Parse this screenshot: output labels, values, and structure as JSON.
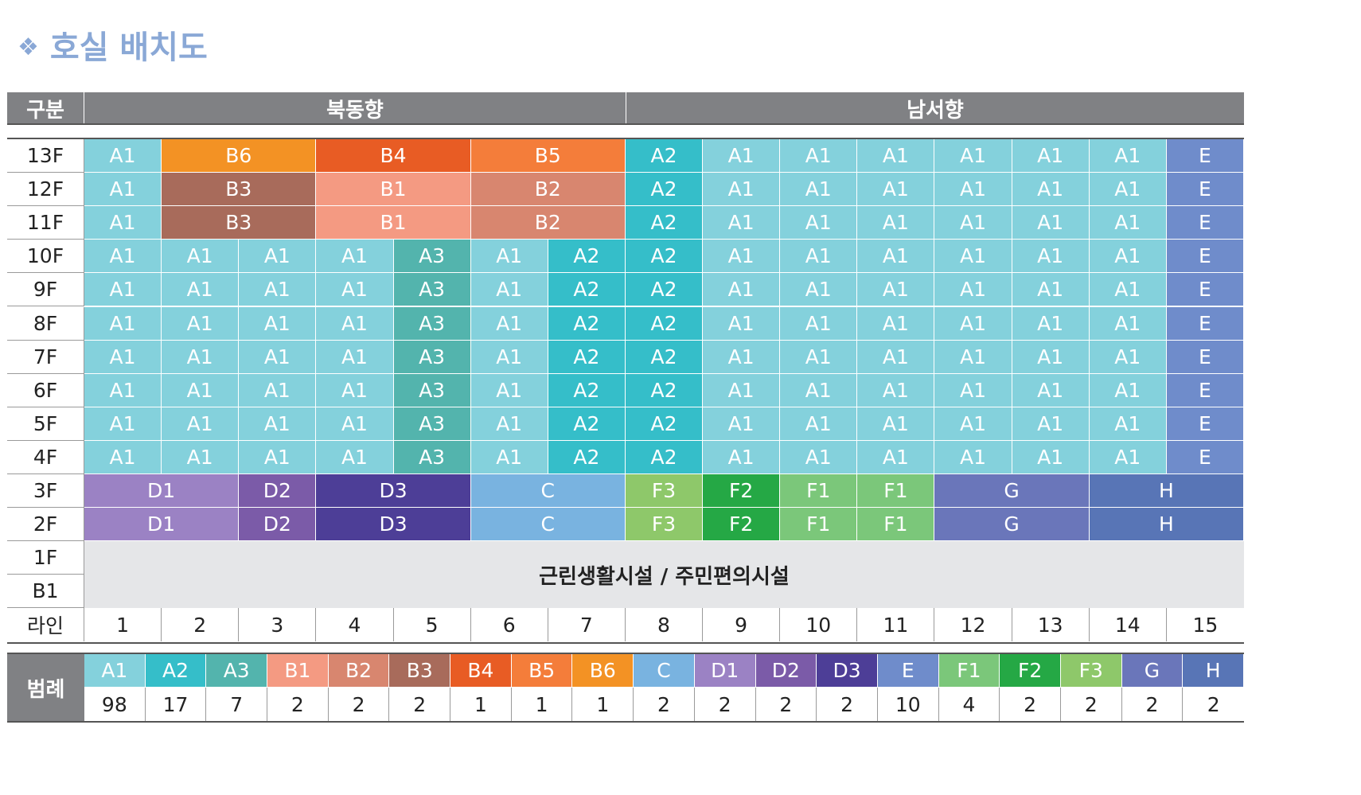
{
  "title": {
    "icon": "diamond-cluster-icon",
    "text": "호실  배치도",
    "color": "#8aa8d6"
  },
  "header": {
    "label": "구분",
    "groups": [
      {
        "label": "북동향",
        "from": 1,
        "to": 7
      },
      {
        "label": "남서향",
        "from": 8,
        "to": 15
      }
    ]
  },
  "types": {
    "A1": "#84d1dc",
    "A2": "#35bec9",
    "A3": "#53b4ad",
    "B1": "#f49a82",
    "B2": "#d8866f",
    "B3": "#a86b5b",
    "B4": "#e85c24",
    "B5": "#f47d3a",
    "B6": "#f39224",
    "C": "#79b3e0",
    "D1": "#9b82c4",
    "D2": "#7b5ba8",
    "D3": "#4d3e97",
    "E": "#6f8ccb",
    "F1": "#7bc77a",
    "F2": "#25a845",
    "F3": "#8ec86a",
    "G": "#6a76ba",
    "H": "#5875b6",
    "common": "#e5e6e8"
  },
  "floors": [
    {
      "label": "13F",
      "cells": [
        {
          "t": "A1",
          "s": 1
        },
        {
          "t": "B6",
          "s": 2
        },
        {
          "t": "B4",
          "s": 2
        },
        {
          "t": "B5",
          "s": 2
        },
        {
          "t": "A2",
          "s": 1
        },
        {
          "t": "A1",
          "s": 1
        },
        {
          "t": "A1",
          "s": 1
        },
        {
          "t": "A1",
          "s": 1
        },
        {
          "t": "A1",
          "s": 1
        },
        {
          "t": "A1",
          "s": 1
        },
        {
          "t": "A1",
          "s": 1
        },
        {
          "t": "E",
          "s": 1
        }
      ]
    },
    {
      "label": "12F",
      "cells": [
        {
          "t": "A1",
          "s": 1
        },
        {
          "t": "B3",
          "s": 2
        },
        {
          "t": "B1",
          "s": 2
        },
        {
          "t": "B2",
          "s": 2
        },
        {
          "t": "A2",
          "s": 1
        },
        {
          "t": "A1",
          "s": 1
        },
        {
          "t": "A1",
          "s": 1
        },
        {
          "t": "A1",
          "s": 1
        },
        {
          "t": "A1",
          "s": 1
        },
        {
          "t": "A1",
          "s": 1
        },
        {
          "t": "A1",
          "s": 1
        },
        {
          "t": "E",
          "s": 1
        }
      ]
    },
    {
      "label": "11F",
      "cells": [
        {
          "t": "A1",
          "s": 1
        },
        {
          "t": "B3",
          "s": 2
        },
        {
          "t": "B1",
          "s": 2
        },
        {
          "t": "B2",
          "s": 2
        },
        {
          "t": "A2",
          "s": 1
        },
        {
          "t": "A1",
          "s": 1
        },
        {
          "t": "A1",
          "s": 1
        },
        {
          "t": "A1",
          "s": 1
        },
        {
          "t": "A1",
          "s": 1
        },
        {
          "t": "A1",
          "s": 1
        },
        {
          "t": "A1",
          "s": 1
        },
        {
          "t": "E",
          "s": 1
        }
      ]
    },
    {
      "label": "10F",
      "cells": [
        {
          "t": "A1",
          "s": 1
        },
        {
          "t": "A1",
          "s": 1
        },
        {
          "t": "A1",
          "s": 1
        },
        {
          "t": "A1",
          "s": 1
        },
        {
          "t": "A3",
          "s": 1
        },
        {
          "t": "A1",
          "s": 1
        },
        {
          "t": "A2",
          "s": 1
        },
        {
          "t": "A2",
          "s": 1
        },
        {
          "t": "A1",
          "s": 1
        },
        {
          "t": "A1",
          "s": 1
        },
        {
          "t": "A1",
          "s": 1
        },
        {
          "t": "A1",
          "s": 1
        },
        {
          "t": "A1",
          "s": 1
        },
        {
          "t": "A1",
          "s": 1
        },
        {
          "t": "E",
          "s": 1
        }
      ]
    },
    {
      "label": "9F",
      "cells": [
        {
          "t": "A1",
          "s": 1
        },
        {
          "t": "A1",
          "s": 1
        },
        {
          "t": "A1",
          "s": 1
        },
        {
          "t": "A1",
          "s": 1
        },
        {
          "t": "A3",
          "s": 1
        },
        {
          "t": "A1",
          "s": 1
        },
        {
          "t": "A2",
          "s": 1
        },
        {
          "t": "A2",
          "s": 1
        },
        {
          "t": "A1",
          "s": 1
        },
        {
          "t": "A1",
          "s": 1
        },
        {
          "t": "A1",
          "s": 1
        },
        {
          "t": "A1",
          "s": 1
        },
        {
          "t": "A1",
          "s": 1
        },
        {
          "t": "A1",
          "s": 1
        },
        {
          "t": "E",
          "s": 1
        }
      ]
    },
    {
      "label": "8F",
      "cells": [
        {
          "t": "A1",
          "s": 1
        },
        {
          "t": "A1",
          "s": 1
        },
        {
          "t": "A1",
          "s": 1
        },
        {
          "t": "A1",
          "s": 1
        },
        {
          "t": "A3",
          "s": 1
        },
        {
          "t": "A1",
          "s": 1
        },
        {
          "t": "A2",
          "s": 1
        },
        {
          "t": "A2",
          "s": 1
        },
        {
          "t": "A1",
          "s": 1
        },
        {
          "t": "A1",
          "s": 1
        },
        {
          "t": "A1",
          "s": 1
        },
        {
          "t": "A1",
          "s": 1
        },
        {
          "t": "A1",
          "s": 1
        },
        {
          "t": "A1",
          "s": 1
        },
        {
          "t": "E",
          "s": 1
        }
      ]
    },
    {
      "label": "7F",
      "cells": [
        {
          "t": "A1",
          "s": 1
        },
        {
          "t": "A1",
          "s": 1
        },
        {
          "t": "A1",
          "s": 1
        },
        {
          "t": "A1",
          "s": 1
        },
        {
          "t": "A3",
          "s": 1
        },
        {
          "t": "A1",
          "s": 1
        },
        {
          "t": "A2",
          "s": 1
        },
        {
          "t": "A2",
          "s": 1
        },
        {
          "t": "A1",
          "s": 1
        },
        {
          "t": "A1",
          "s": 1
        },
        {
          "t": "A1",
          "s": 1
        },
        {
          "t": "A1",
          "s": 1
        },
        {
          "t": "A1",
          "s": 1
        },
        {
          "t": "A1",
          "s": 1
        },
        {
          "t": "E",
          "s": 1
        }
      ]
    },
    {
      "label": "6F",
      "cells": [
        {
          "t": "A1",
          "s": 1
        },
        {
          "t": "A1",
          "s": 1
        },
        {
          "t": "A1",
          "s": 1
        },
        {
          "t": "A1",
          "s": 1
        },
        {
          "t": "A3",
          "s": 1
        },
        {
          "t": "A1",
          "s": 1
        },
        {
          "t": "A2",
          "s": 1
        },
        {
          "t": "A2",
          "s": 1
        },
        {
          "t": "A1",
          "s": 1
        },
        {
          "t": "A1",
          "s": 1
        },
        {
          "t": "A1",
          "s": 1
        },
        {
          "t": "A1",
          "s": 1
        },
        {
          "t": "A1",
          "s": 1
        },
        {
          "t": "A1",
          "s": 1
        },
        {
          "t": "E",
          "s": 1
        }
      ]
    },
    {
      "label": "5F",
      "cells": [
        {
          "t": "A1",
          "s": 1
        },
        {
          "t": "A1",
          "s": 1
        },
        {
          "t": "A1",
          "s": 1
        },
        {
          "t": "A1",
          "s": 1
        },
        {
          "t": "A3",
          "s": 1
        },
        {
          "t": "A1",
          "s": 1
        },
        {
          "t": "A2",
          "s": 1
        },
        {
          "t": "A2",
          "s": 1
        },
        {
          "t": "A1",
          "s": 1
        },
        {
          "t": "A1",
          "s": 1
        },
        {
          "t": "A1",
          "s": 1
        },
        {
          "t": "A1",
          "s": 1
        },
        {
          "t": "A1",
          "s": 1
        },
        {
          "t": "A1",
          "s": 1
        },
        {
          "t": "E",
          "s": 1
        }
      ]
    },
    {
      "label": "4F",
      "cells": [
        {
          "t": "A1",
          "s": 1
        },
        {
          "t": "A1",
          "s": 1
        },
        {
          "t": "A1",
          "s": 1
        },
        {
          "t": "A1",
          "s": 1
        },
        {
          "t": "A3",
          "s": 1
        },
        {
          "t": "A1",
          "s": 1
        },
        {
          "t": "A2",
          "s": 1
        },
        {
          "t": "A2",
          "s": 1
        },
        {
          "t": "A1",
          "s": 1
        },
        {
          "t": "A1",
          "s": 1
        },
        {
          "t": "A1",
          "s": 1
        },
        {
          "t": "A1",
          "s": 1
        },
        {
          "t": "A1",
          "s": 1
        },
        {
          "t": "A1",
          "s": 1
        },
        {
          "t": "E",
          "s": 1
        }
      ]
    },
    {
      "label": "3F",
      "cells": [
        {
          "t": "D1",
          "s": 2
        },
        {
          "t": "D2",
          "s": 1
        },
        {
          "t": "D3",
          "s": 2
        },
        {
          "t": "C",
          "s": 2
        },
        {
          "t": "F3",
          "s": 1
        },
        {
          "t": "F2",
          "s": 1
        },
        {
          "t": "F1",
          "s": 1
        },
        {
          "t": "F1",
          "s": 1
        },
        {
          "t": "G",
          "s": 2
        },
        {
          "t": "H",
          "s": 2
        }
      ]
    },
    {
      "label": "2F",
      "cells": [
        {
          "t": "D1",
          "s": 2
        },
        {
          "t": "D2",
          "s": 1
        },
        {
          "t": "D3",
          "s": 2
        },
        {
          "t": "C",
          "s": 2
        },
        {
          "t": "F3",
          "s": 1
        },
        {
          "t": "F2",
          "s": 1
        },
        {
          "t": "F1",
          "s": 1
        },
        {
          "t": "F1",
          "s": 1
        },
        {
          "t": "G",
          "s": 2
        },
        {
          "t": "H",
          "s": 2
        }
      ]
    }
  ],
  "lower_floors": [
    "1F",
    "B1"
  ],
  "common_facility": "근린생활시설 / 주민편의시설",
  "line_row": {
    "label": "라인",
    "numbers": [
      "1",
      "2",
      "3",
      "4",
      "5",
      "6",
      "7",
      "8",
      "9",
      "10",
      "11",
      "12",
      "13",
      "14",
      "15"
    ]
  },
  "legend": {
    "label": "범례",
    "items": [
      {
        "type": "A1",
        "count": "98"
      },
      {
        "type": "A2",
        "count": "17"
      },
      {
        "type": "A3",
        "count": "7"
      },
      {
        "type": "B1",
        "count": "2"
      },
      {
        "type": "B2",
        "count": "2"
      },
      {
        "type": "B3",
        "count": "2"
      },
      {
        "type": "B4",
        "count": "1"
      },
      {
        "type": "B5",
        "count": "1"
      },
      {
        "type": "B6",
        "count": "1"
      },
      {
        "type": "C",
        "count": "2"
      },
      {
        "type": "D1",
        "count": "2"
      },
      {
        "type": "D2",
        "count": "2"
      },
      {
        "type": "D3",
        "count": "2"
      },
      {
        "type": "E",
        "count": "10"
      },
      {
        "type": "F1",
        "count": "4"
      },
      {
        "type": "F2",
        "count": "2"
      },
      {
        "type": "F3",
        "count": "2"
      },
      {
        "type": "G",
        "count": "2"
      },
      {
        "type": "H",
        "count": "2"
      }
    ]
  }
}
